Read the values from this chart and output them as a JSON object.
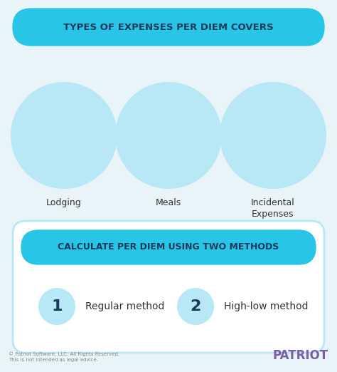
{
  "bg_color": "#e8f4f8",
  "title_text": "TYPES OF EXPENSES PER DIEM COVERS",
  "title_bg": "#29c5e6",
  "title_text_color": "#1a3a5c",
  "section1_labels": [
    "Lodging",
    "Meals",
    "Incidental\nExpenses"
  ],
  "circle_color": "#b8e8f5",
  "section2_bg": "#ffffff",
  "section2_border": "#b8e8f5",
  "section2_title": "CALCULATE PER DIEM USING TWO METHODS",
  "section2_title_bg": "#29c5e6",
  "section2_title_color": "#1a3a5c",
  "method_circle_color": "#b8e8f5",
  "method1_num": "1",
  "method1_label": "Regular method",
  "method2_num": "2",
  "method2_label": "High-low method",
  "footer_left": "© Patriot Software, LLC. All Rights Reserved.\nThis is not intended as legal advice.",
  "footer_brand": "PATRIOT",
  "footer_brand_color": "#7b5ea7",
  "footer_color": "#888888"
}
